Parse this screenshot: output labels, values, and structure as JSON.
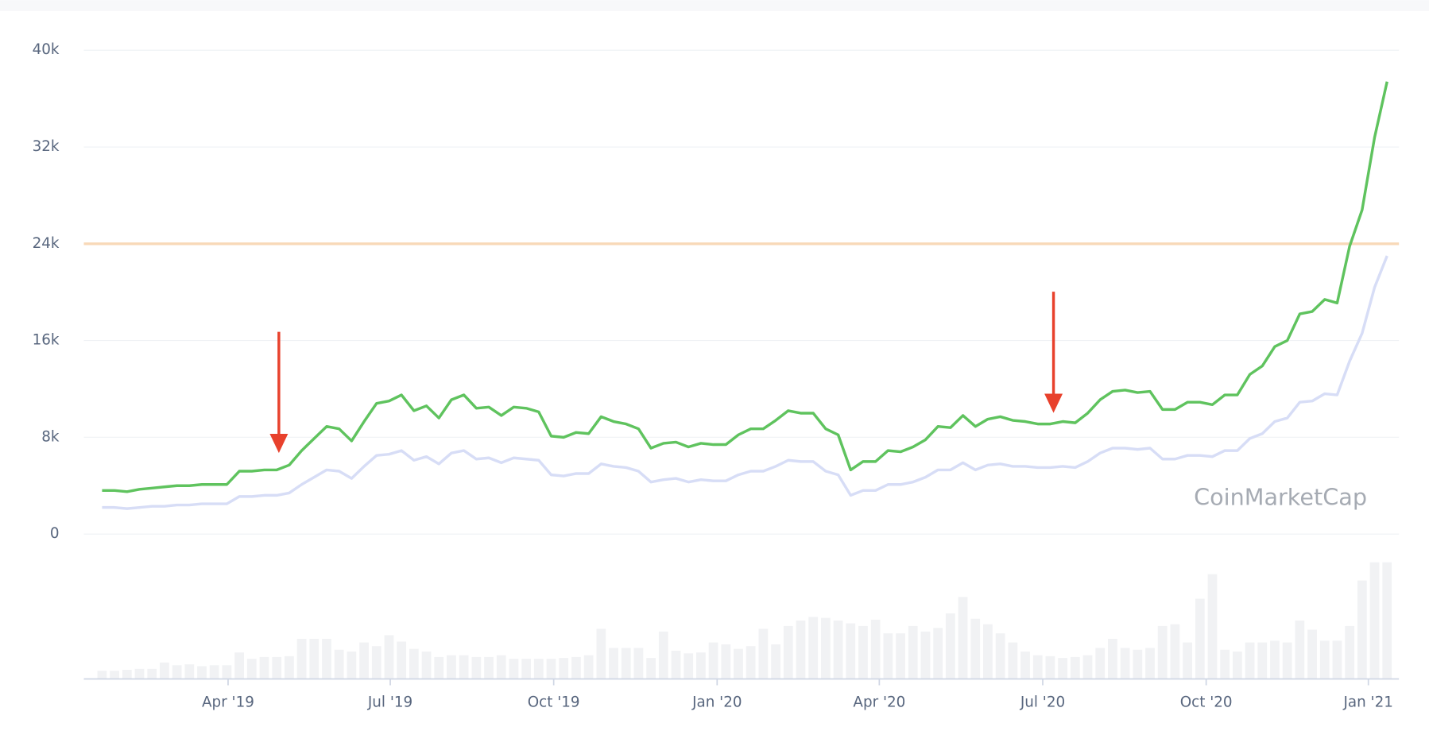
{
  "chart_data": {
    "type": "line",
    "watermark": "CoinMarketCap",
    "ylim": [
      0,
      40000
    ],
    "yticks": [
      0,
      {
        "value": 8000,
        "label": "8k"
      },
      {
        "value": 16000,
        "label": "16k"
      },
      {
        "value": 24000,
        "label": "24k"
      },
      {
        "value": 32000,
        "label": "32k"
      },
      {
        "value": 40000,
        "label": "40k"
      }
    ],
    "xticks": [
      {
        "value": 10.1,
        "label": "Apr '19"
      },
      {
        "value": 23.1,
        "label": "Jul '19"
      },
      {
        "value": 36.2,
        "label": "Oct '19"
      },
      {
        "value": 49.3,
        "label": "Jan '20"
      },
      {
        "value": 62.3,
        "label": "Apr '20"
      },
      {
        "value": 75.4,
        "label": "Jul '20"
      },
      {
        "value": 88.5,
        "label": "Oct '20"
      },
      {
        "value": 101.5,
        "label": "Jan '21"
      }
    ],
    "grid": true,
    "reference_line": {
      "value": 24000,
      "color": "#f8d9b8"
    },
    "series": [
      {
        "color": "#5fc35e",
        "values": [
          3600,
          3600,
          3500,
          3700,
          3800,
          3900,
          4000,
          4000,
          4100,
          4100,
          4100,
          5200,
          5200,
          5300,
          5300,
          5700,
          6900,
          7900,
          8900,
          8700,
          7700,
          9300,
          10800,
          11000,
          11500,
          10200,
          10600,
          9600,
          11100,
          11500,
          10400,
          10500,
          9800,
          10500,
          10400,
          10100,
          8100,
          8000,
          8400,
          8300,
          9700,
          9300,
          9100,
          8700,
          7100,
          7500,
          7600,
          7200,
          7500,
          7400,
          7400,
          8200,
          8700,
          8700,
          9400,
          10200,
          10000,
          10000,
          8700,
          8200,
          5300,
          6000,
          6000,
          6900,
          6800,
          7200,
          7800,
          8900,
          8800,
          9800,
          8900,
          9500,
          9700,
          9400,
          9300,
          9100,
          9100,
          9300,
          9200,
          10000,
          11100,
          11800,
          11900,
          11700,
          11800,
          10300,
          10300,
          10900,
          10900,
          10700,
          11500,
          11500,
          13200,
          13900,
          15500,
          16000,
          18200,
          18400,
          19400,
          19100,
          23800,
          26800,
          32800,
          37400
        ]
      },
      {
        "color": "#d7ddf6",
        "values": [
          2200,
          2200,
          2100,
          2200,
          2300,
          2300,
          2400,
          2400,
          2500,
          2500,
          2500,
          3100,
          3100,
          3200,
          3200,
          3400,
          4100,
          4700,
          5300,
          5200,
          4600,
          5600,
          6500,
          6600,
          6900,
          6100,
          6400,
          5800,
          6700,
          6900,
          6200,
          6300,
          5900,
          6300,
          6200,
          6100,
          4900,
          4800,
          5000,
          5000,
          5800,
          5600,
          5500,
          5200,
          4300,
          4500,
          4600,
          4300,
          4500,
          4400,
          4400,
          4900,
          5200,
          5200,
          5600,
          6100,
          6000,
          6000,
          5200,
          4900,
          3200,
          3600,
          3600,
          4100,
          4100,
          4300,
          4700,
          5300,
          5300,
          5900,
          5300,
          5700,
          5800,
          5600,
          5600,
          5500,
          5500,
          5600,
          5500,
          6000,
          6700,
          7100,
          7100,
          7000,
          7100,
          6200,
          6200,
          6500,
          6500,
          6400,
          6900,
          6900,
          7900,
          8300,
          9300,
          9600,
          10900,
          11000,
          11600,
          11500,
          14300,
          16600,
          20400,
          23000
        ]
      }
    ],
    "volume": {
      "color": "#f1f2f4",
      "values": [
        9,
        9,
        10,
        11,
        11,
        18,
        15,
        16,
        14,
        15,
        15,
        29,
        22,
        24,
        24,
        25,
        44,
        44,
        44,
        32,
        30,
        40,
        36,
        48,
        41,
        33,
        30,
        24,
        26,
        26,
        24,
        24,
        26,
        22,
        22,
        22,
        22,
        23,
        24,
        26,
        55,
        34,
        34,
        34,
        23,
        52,
        31,
        28,
        29,
        40,
        38,
        33,
        36,
        55,
        38,
        58,
        64,
        68,
        67,
        64,
        61,
        58,
        65,
        50,
        50,
        58,
        52,
        56,
        72,
        90,
        66,
        60,
        50,
        40,
        30,
        26,
        25,
        23,
        24,
        26,
        34,
        44,
        34,
        32,
        34,
        58,
        60,
        40,
        88,
        115,
        32,
        30,
        40,
        40,
        42,
        40,
        64,
        54,
        42,
        42,
        58,
        108,
        128,
        128
      ]
    }
  }
}
